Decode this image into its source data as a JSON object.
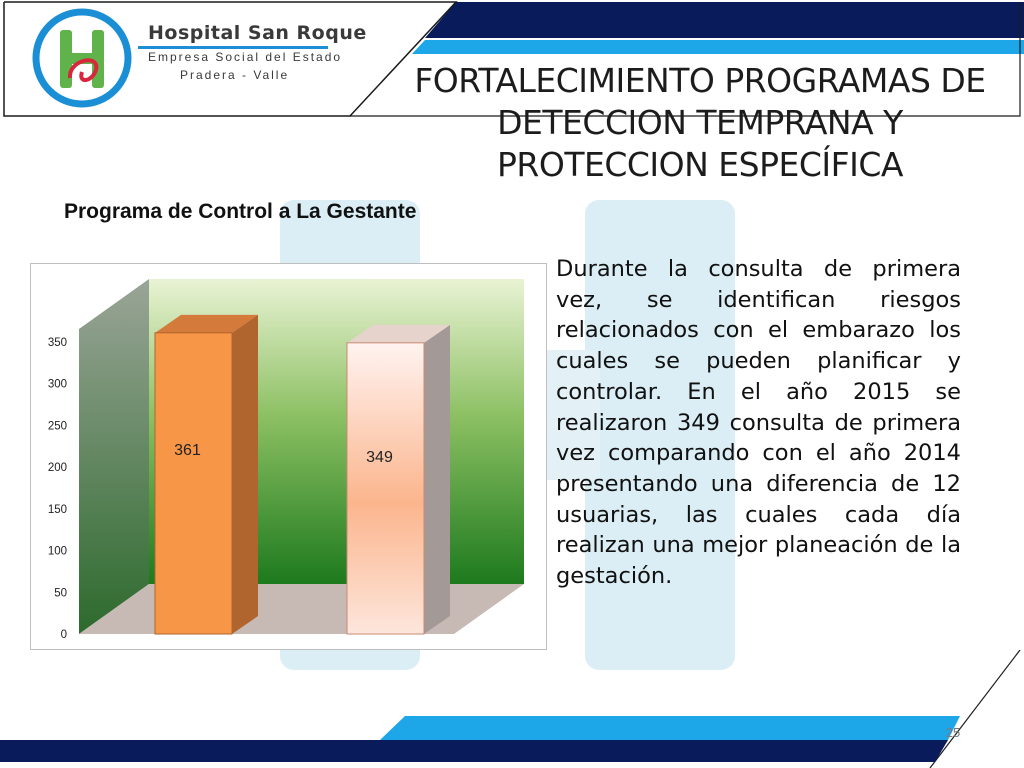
{
  "logo": {
    "name": "Hospital San Roque",
    "subtitle": "Empresa Social del Estado",
    "place": "Pradera - Valle"
  },
  "title_lines": [
    "FORTALECIMIENTO PROGRAMAS DE",
    "DETECCION TEMPRANA Y",
    "PROTECCION ESPECÍFICA"
  ],
  "subtitle": "Programa de Control a La Gestante",
  "chart_data": {
    "type": "bar",
    "categories": [
      "",
      ""
    ],
    "values": [
      361,
      349
    ],
    "data_labels": [
      "361",
      "349"
    ],
    "ylim": [
      0,
      350
    ],
    "yticks": [
      "0",
      "50",
      "100",
      "150",
      "200",
      "250",
      "300",
      "350"
    ],
    "grid": false,
    "three_d": true,
    "colors": {
      "bar1": "#f79646",
      "bar2": "#fde7df",
      "wall_top": "#e9f3d4",
      "wall_bottom": "#1d7a1d",
      "floor": "#c7b9b3"
    }
  },
  "paragraph": "Durante la consulta de primera vez, se identifican riesgos relacionados con el embarazo los cuales se pueden planificar y controlar. En el año 2015 se realizaron 349 consulta de primera vez comparando con el año 2014 presentando una diferencia de 12 usuarias, las cuales cada día realizan una mejor planeación de la gestación.",
  "page_number": "25",
  "colors": {
    "navy": "#0a1b5c",
    "cyan": "#1ea7e8",
    "watermark": "#dbeef5"
  }
}
